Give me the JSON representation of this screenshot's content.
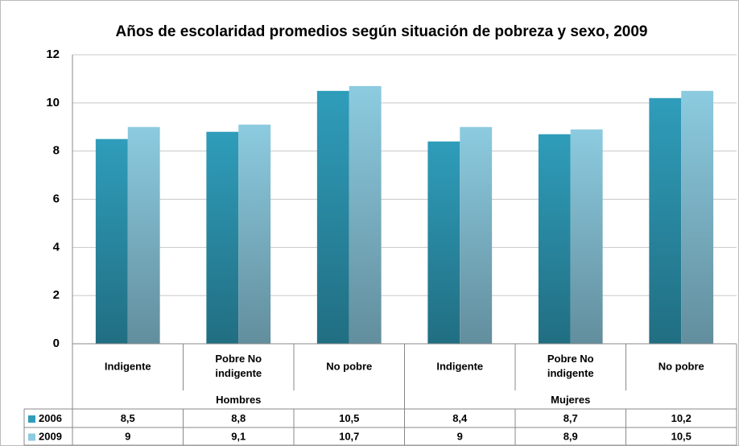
{
  "chart_data": {
    "type": "bar",
    "title": "Años de escolaridad promedios según situación de pobreza y sexo, 2009",
    "categories": [
      "Indigente",
      "Pobre No indigente",
      "No pobre",
      "Indigente",
      "Pobre No indigente",
      "No pobre"
    ],
    "group_labels": [
      "Hombres",
      "Mujeres"
    ],
    "series": [
      {
        "name": "2006",
        "color": "#2f9dba",
        "values": [
          8.5,
          8.8,
          10.5,
          8.4,
          8.7,
          10.2
        ],
        "value_labels": [
          "8,5",
          "8,8",
          "10,5",
          "8,4",
          "8,7",
          "10,2"
        ]
      },
      {
        "name": "2009",
        "color": "#8ccbe0",
        "values": [
          9,
          9.1,
          10.7,
          9,
          8.9,
          10.5
        ],
        "value_labels": [
          "9",
          "9,1",
          "10,7",
          "9",
          "8,9",
          "10,5"
        ]
      }
    ],
    "ylim": [
      0,
      12
    ],
    "yticks": [
      0,
      2,
      4,
      6,
      8,
      10,
      12
    ],
    "grid": true,
    "data_table": true
  }
}
